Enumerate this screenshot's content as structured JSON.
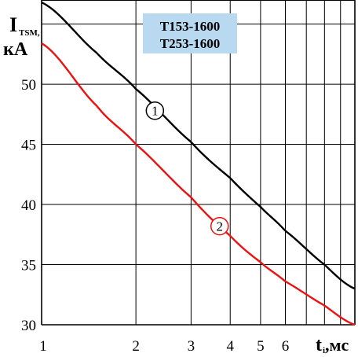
{
  "chart_data": {
    "type": "line",
    "title_lines": [
      "T153-1600",
      "T253-1600"
    ],
    "ylabel": {
      "main": "I",
      "sub": "TSM,",
      "unit": "кА"
    },
    "xlabel": {
      "main": "t",
      "sub": "i",
      "unit": ",мс"
    },
    "x_scale": "log",
    "xlim": [
      1,
      10
    ],
    "ylim": [
      30,
      57
    ],
    "x_tick_labels": [
      {
        "value": 1,
        "label": "1"
      },
      {
        "value": 2,
        "label": "2"
      },
      {
        "value": 3,
        "label": "3"
      },
      {
        "value": 4,
        "label": "4"
      },
      {
        "value": 5,
        "label": "5"
      },
      {
        "value": 6,
        "label": "6"
      }
    ],
    "y_tick_labels": [
      {
        "value": 30,
        "label": "30"
      },
      {
        "value": 35,
        "label": "35"
      },
      {
        "value": 40,
        "label": "40"
      },
      {
        "value": 45,
        "label": "45"
      },
      {
        "value": 50,
        "label": "50"
      }
    ],
    "series": [
      {
        "name": "1",
        "color": "#000000",
        "points": [
          [
            1,
            56.8
          ],
          [
            1.5,
            52.6
          ],
          [
            2,
            49.6
          ],
          [
            3,
            45.2
          ],
          [
            4,
            42.2
          ],
          [
            5,
            39.8
          ],
          [
            6,
            37.8
          ],
          [
            8,
            35.0
          ],
          [
            10,
            33.0
          ]
        ]
      },
      {
        "name": "2",
        "color": "#ee1111",
        "points": [
          [
            1,
            53.4
          ],
          [
            1.5,
            48.2
          ],
          [
            2,
            45.0
          ],
          [
            3,
            40.6
          ],
          [
            4,
            37.4
          ],
          [
            5,
            35.2
          ],
          [
            6,
            33.6
          ],
          [
            8,
            31.6
          ],
          [
            10,
            30.0
          ]
        ]
      }
    ],
    "series_label_positions": [
      {
        "label": "1",
        "x": 2.3,
        "y": 47.8
      },
      {
        "label": "2",
        "x": 3.7,
        "y": 38.2
      }
    ],
    "grid": true
  }
}
